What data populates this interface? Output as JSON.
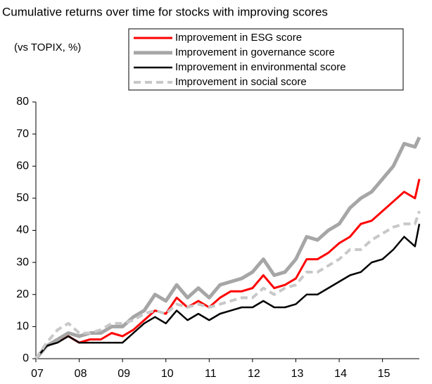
{
  "chart_data": {
    "type": "line",
    "title": "Cumulative returns over time for stocks with improving scores",
    "y_label": "(vs TOPIX, %)",
    "x": [
      7,
      7.25,
      7.5,
      7.75,
      8,
      8.25,
      8.5,
      8.75,
      9,
      9.25,
      9.5,
      9.75,
      10,
      10.25,
      10.5,
      10.75,
      11,
      11.25,
      11.5,
      11.75,
      12,
      12.25,
      12.5,
      12.75,
      13,
      13.25,
      13.5,
      13.75,
      14,
      14.25,
      14.5,
      14.75,
      15,
      15.25,
      15.5,
      15.75,
      15.85
    ],
    "series": [
      {
        "name": "Improvement in ESG score",
        "color": "#ff0000",
        "width": 3,
        "dashed": false,
        "values": [
          0,
          4,
          6,
          7,
          5,
          6,
          6,
          8,
          7,
          9,
          12,
          15,
          14,
          19,
          16,
          18,
          16,
          19,
          21,
          21,
          22,
          26,
          22,
          23,
          25,
          31,
          31,
          33,
          36,
          38,
          42,
          43,
          46,
          49,
          52,
          50,
          56
        ]
      },
      {
        "name": "Improvement in governance score",
        "color": "#a6a6a6",
        "width": 5,
        "dashed": false,
        "values": [
          0,
          4,
          6,
          8,
          7,
          8,
          8,
          10,
          10,
          13,
          15,
          20,
          18,
          23,
          19,
          22,
          19,
          23,
          24,
          25,
          27,
          31,
          26,
          27,
          31,
          38,
          37,
          40,
          42,
          47,
          50,
          52,
          56,
          60,
          67,
          66,
          69
        ]
      },
      {
        "name": "Improvement in environmental score",
        "color": "#000000",
        "width": 2.5,
        "dashed": false,
        "values": [
          0,
          4,
          5,
          7,
          5,
          5,
          5,
          5,
          5,
          8,
          11,
          13,
          11,
          15,
          12,
          14,
          12,
          14,
          15,
          16,
          16,
          18,
          16,
          16,
          17,
          20,
          20,
          22,
          24,
          26,
          27,
          30,
          31,
          34,
          38,
          35,
          42
        ]
      },
      {
        "name": "Improvement in social score",
        "color": "#c8c8c8",
        "width": 4,
        "dashed": true,
        "values": [
          0,
          5,
          9,
          11,
          8,
          8,
          9,
          11,
          11,
          12,
          14,
          15,
          14,
          17,
          16,
          17,
          16,
          17,
          18,
          19,
          19,
          22,
          20,
          22,
          23,
          27,
          27,
          29,
          31,
          34,
          34,
          37,
          39,
          41,
          42,
          42,
          46
        ]
      }
    ],
    "xlim": [
      7,
      15.85
    ],
    "xticks": [
      {
        "value": 7,
        "label": "07"
      },
      {
        "value": 8,
        "label": "08"
      },
      {
        "value": 9,
        "label": "09"
      },
      {
        "value": 10,
        "label": "10"
      },
      {
        "value": 11,
        "label": "11"
      },
      {
        "value": 12,
        "label": "12"
      },
      {
        "value": 13,
        "label": "13"
      },
      {
        "value": 14,
        "label": "14"
      },
      {
        "value": 15,
        "label": "15"
      }
    ],
    "ylim": [
      0,
      80
    ],
    "yticks": [
      0,
      10,
      20,
      30,
      40,
      50,
      60,
      70,
      80
    ]
  }
}
